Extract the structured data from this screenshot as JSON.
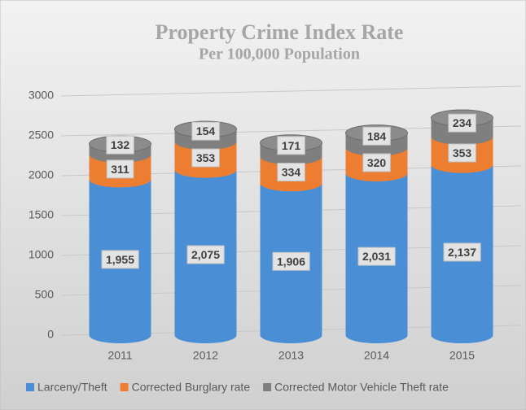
{
  "chart_data": {
    "type": "stacked_bar",
    "title": "Property Crime Index Rate",
    "subtitle": "Per 100,000 Population",
    "categories": [
      "2011",
      "2012",
      "2013",
      "2014",
      "2015"
    ],
    "series": [
      {
        "name": "Larceny/Theft",
        "color": "#4a8fd6",
        "values": [
          1955,
          2075,
          1906,
          2031,
          2137
        ],
        "value_labels": [
          "1,955",
          "2,075",
          "1,906",
          "2,031",
          "2,137"
        ]
      },
      {
        "name": "Corrected Burglary rate",
        "color": "#ed7d31",
        "values": [
          311,
          353,
          334,
          320,
          353
        ]
      },
      {
        "name": "Corrected Motor Vehicle Theft rate",
        "color": "#7f7f7f",
        "values": [
          132,
          154,
          171,
          184,
          234
        ]
      }
    ],
    "ylim": [
      0,
      3000
    ],
    "yticks": [
      0,
      500,
      1000,
      1500,
      2000,
      2500,
      3000
    ],
    "grid": true,
    "legend": "bottom"
  }
}
